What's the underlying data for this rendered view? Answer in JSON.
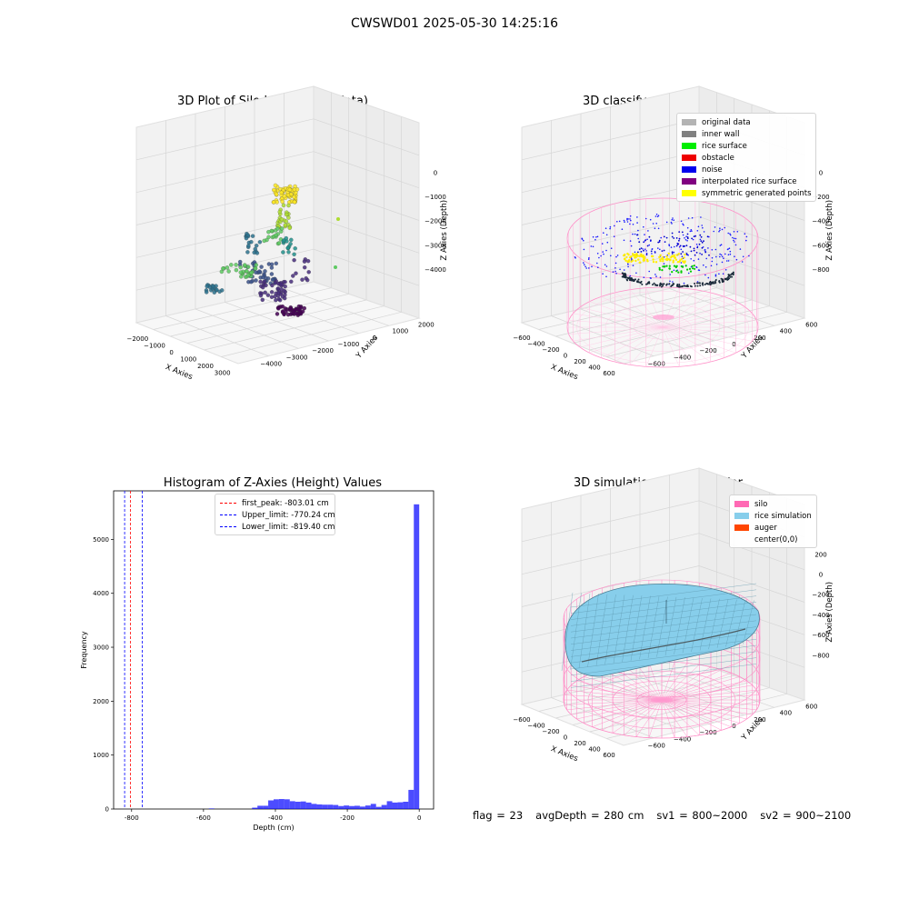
{
  "page": {
    "suptitle": "CWSWD01 2025-05-30 14:25:16"
  },
  "chart_data": [
    {
      "type": "scatter",
      "title": "3D Plot of Silo Interior(row data)",
      "xlabel": "X Axies",
      "ylabel": "Y Axies",
      "zlabel": "Z Axies (Depth)",
      "x_ticks": [
        "−2000",
        "−1000",
        "0",
        "1000",
        "2000",
        "3000"
      ],
      "y_ticks": [
        "2000",
        "1000",
        "0",
        "−1000",
        "−2000",
        "−3000",
        "−4000"
      ],
      "z_ticks": [
        "0",
        "−1000",
        "−2000",
        "−3000",
        "−4000"
      ],
      "colormap": "viridis"
    },
    {
      "type": "scatter",
      "title": "3D classify of Silo Interior",
      "xlabel": "X Axies",
      "ylabel": "Y Axies",
      "zlabel": "Z Axies (Depth)",
      "x_ticks": [
        "−600",
        "−400",
        "−200",
        "0",
        "200",
        "400",
        "600"
      ],
      "y_ticks": [
        "600",
        "400",
        "200",
        "0",
        "−200",
        "−400",
        "−600"
      ],
      "z_ticks": [
        "0",
        "−200",
        "−400",
        "−600",
        "−800"
      ],
      "legend": [
        {
          "label": "original data",
          "color": "#b3b3b3"
        },
        {
          "label": "inner wall",
          "color": "#808080"
        },
        {
          "label": "rice surface",
          "color": "#00ee00"
        },
        {
          "label": "obstacle",
          "color": "#ee0000"
        },
        {
          "label": "noise",
          "color": "#0000ee"
        },
        {
          "label": "interpolated rice surface",
          "color": "#800080"
        },
        {
          "label": "symmetric generated points",
          "color": "#ffff00"
        }
      ]
    },
    {
      "type": "bar",
      "title": "Histogram of Z-Axies (Height) Values",
      "xlabel": "Depth (cm)",
      "ylabel": "Frequency",
      "xlim": [
        -850,
        40
      ],
      "ylim": [
        0,
        5900
      ],
      "x_ticks": [
        -800,
        -600,
        -400,
        -200,
        0
      ],
      "y_ticks": [
        0,
        1000,
        2000,
        3000,
        4000,
        5000
      ],
      "bar_color": "#0000ff",
      "bin_width": 15,
      "bins": [
        {
          "x": -585,
          "value": 10
        },
        {
          "x": -465,
          "value": 25
        },
        {
          "x": -450,
          "value": 60
        },
        {
          "x": -435,
          "value": 60
        },
        {
          "x": -420,
          "value": 160
        },
        {
          "x": -405,
          "value": 180
        },
        {
          "x": -390,
          "value": 185
        },
        {
          "x": -375,
          "value": 180
        },
        {
          "x": -360,
          "value": 145
        },
        {
          "x": -345,
          "value": 135
        },
        {
          "x": -330,
          "value": 140
        },
        {
          "x": -315,
          "value": 120
        },
        {
          "x": -300,
          "value": 95
        },
        {
          "x": -285,
          "value": 85
        },
        {
          "x": -270,
          "value": 80
        },
        {
          "x": -255,
          "value": 80
        },
        {
          "x": -240,
          "value": 75
        },
        {
          "x": -225,
          "value": 55
        },
        {
          "x": -210,
          "value": 65
        },
        {
          "x": -195,
          "value": 55
        },
        {
          "x": -180,
          "value": 60
        },
        {
          "x": -165,
          "value": 45
        },
        {
          "x": -150,
          "value": 65
        },
        {
          "x": -135,
          "value": 95
        },
        {
          "x": -120,
          "value": 40
        },
        {
          "x": -105,
          "value": 75
        },
        {
          "x": -90,
          "value": 145
        },
        {
          "x": -75,
          "value": 120
        },
        {
          "x": -60,
          "value": 125
        },
        {
          "x": -45,
          "value": 135
        },
        {
          "x": -30,
          "value": 355
        },
        {
          "x": -15,
          "value": 5650
        }
      ],
      "vlines": [
        {
          "label": "first_peak: -803.01 cm",
          "x": -803.01,
          "color": "#ff0000"
        },
        {
          "label": "Upper_limit: -770.24 cm",
          "x": -770.24,
          "color": "#0000ff"
        },
        {
          "label": "Lower_limit: -819.40 cm",
          "x": -819.4,
          "color": "#0000ff"
        }
      ]
    },
    {
      "type": "area",
      "title": "3D simulation of Silo Interior",
      "xlabel": "X Axies",
      "ylabel": "Y Axies",
      "zlabel": "Z Axies (Depth)",
      "x_ticks": [
        "−600",
        "−400",
        "−200",
        "0",
        "200",
        "400",
        "600"
      ],
      "y_ticks": [
        "600",
        "400",
        "200",
        "0",
        "−200",
        "−400",
        "−600"
      ],
      "z_ticks": [
        "200",
        "0",
        "−200",
        "−400",
        "−600",
        "−800"
      ],
      "legend": [
        {
          "label": "silo",
          "color": "#ff69b4"
        },
        {
          "label": "rice simulation",
          "color": "#87ceeb"
        },
        {
          "label": "auger",
          "color": "#ff4500"
        },
        {
          "label": "center(0,0)",
          "color": ""
        }
      ]
    }
  ],
  "footer": {
    "flag": "flag = 23",
    "avg": "avgDepth = 280 cm",
    "sv1": "sv1 = 800~2000",
    "sv2": "sv2 = 900~2100"
  }
}
